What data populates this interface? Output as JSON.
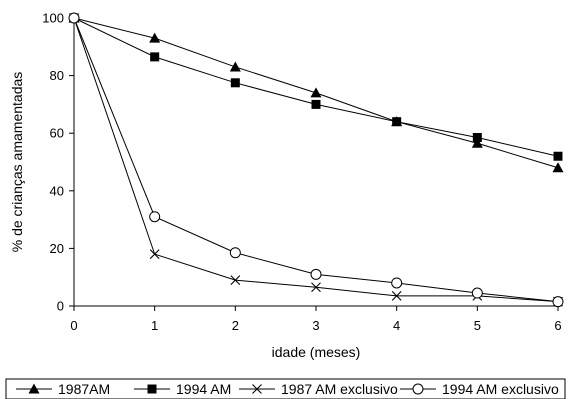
{
  "chart_data": {
    "type": "line",
    "title": "",
    "xlabel": "idade (meses)",
    "ylabel": "% de crianças amamentadas",
    "x": [
      0,
      1,
      2,
      3,
      4,
      5,
      6
    ],
    "xlim": [
      0,
      6
    ],
    "ylim": [
      0,
      100
    ],
    "yticks": [
      0,
      20,
      40,
      60,
      80,
      100
    ],
    "grid": false,
    "legend_position": "bottom",
    "series": [
      {
        "name": "1987AM",
        "marker": "triangle",
        "values": [
          100,
          93,
          83,
          74,
          64,
          56.5,
          48
        ]
      },
      {
        "name": "1994 AM",
        "marker": "square",
        "values": [
          100,
          86.5,
          77.5,
          70,
          64,
          58.5,
          52
        ]
      },
      {
        "name": "1987 AM exclusivo",
        "marker": "x",
        "values": [
          100,
          18,
          9,
          6.5,
          3.5,
          3.5,
          1.5
        ]
      },
      {
        "name": "1994 AM exclusivo",
        "marker": "circle",
        "values": [
          100,
          31,
          18.5,
          11,
          8,
          4.5,
          1.5
        ]
      }
    ]
  }
}
